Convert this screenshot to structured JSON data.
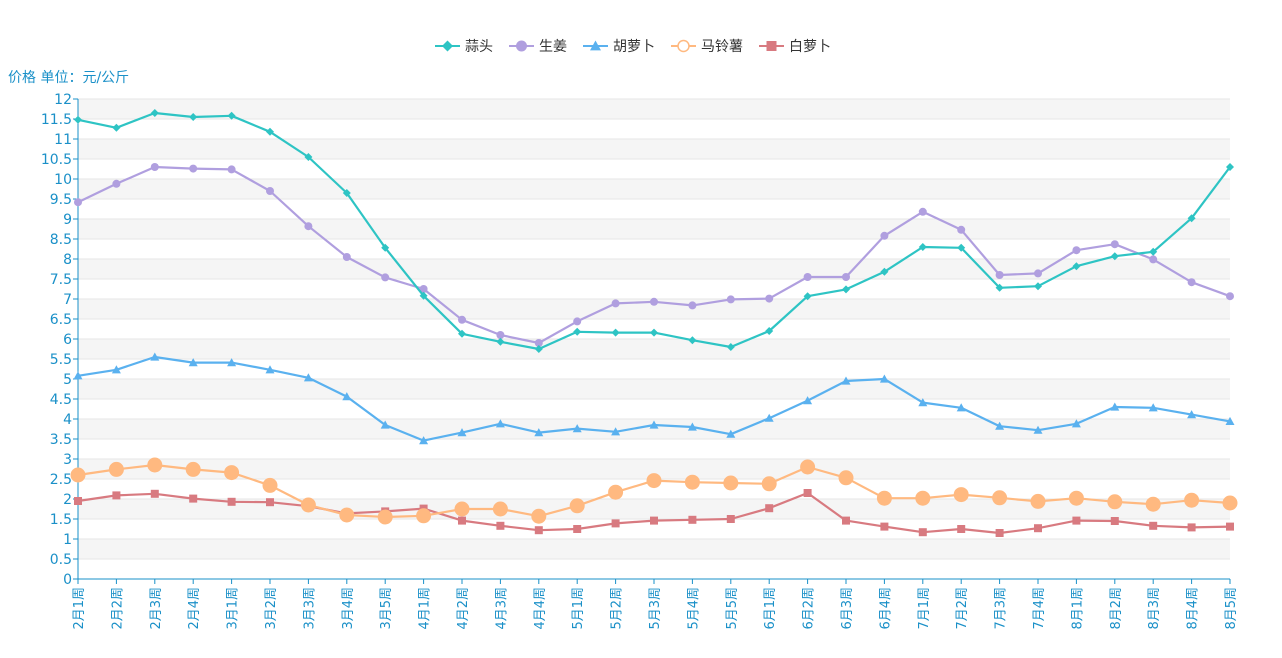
{
  "chart_data": {
    "type": "line",
    "y_unit_label": "价格 单位：元/公斤",
    "ylim": [
      0,
      12
    ],
    "y_ticks": [
      "0",
      "0.5",
      "1",
      "1.5",
      "2",
      "2.5",
      "3",
      "3.5",
      "4",
      "4.5",
      "5",
      "5.5",
      "6",
      "6.5",
      "7",
      "7.5",
      "8",
      "8.5",
      "9",
      "9.5",
      "10",
      "10.5",
      "11",
      "11.5",
      "12"
    ],
    "grid": "horizontal bands",
    "legend_position": "top-center",
    "categories": [
      "2月1周",
      "2月2周",
      "2月3周",
      "2月4周",
      "3月1周",
      "3月2周",
      "3月3周",
      "3月4周",
      "3月5周",
      "4月1周",
      "4月2周",
      "4月3周",
      "4月4周",
      "5月1周",
      "5月2周",
      "5月3周",
      "5月4周",
      "5月5周",
      "6月1周",
      "6月2周",
      "6月3周",
      "6月4周",
      "7月1周",
      "7月2周",
      "7月3周",
      "7月4周",
      "8月1周",
      "8月2周",
      "8月3周",
      "8月4周",
      "8月5周"
    ],
    "series": [
      {
        "name": "蒜头",
        "color": "#2ec4c4",
        "marker": "diamond",
        "values": [
          11.48,
          11.28,
          11.65,
          11.55,
          11.58,
          11.18,
          10.55,
          9.65,
          8.28,
          7.08,
          6.13,
          5.93,
          5.75,
          6.18,
          6.16,
          6.16,
          5.97,
          5.8,
          6.2,
          7.07,
          7.24,
          7.68,
          8.3,
          8.28,
          7.28,
          7.32,
          7.82,
          8.07,
          8.18,
          9.02,
          10.3
        ]
      },
      {
        "name": "生姜",
        "color": "#b09fdf",
        "marker": "circle",
        "values": [
          9.42,
          9.88,
          10.3,
          10.26,
          10.24,
          9.7,
          8.82,
          8.05,
          7.54,
          7.25,
          6.48,
          6.1,
          5.9,
          6.44,
          6.89,
          6.93,
          6.84,
          6.99,
          7.01,
          7.55,
          7.55,
          8.58,
          9.18,
          8.73,
          7.6,
          7.64,
          8.22,
          8.37,
          7.99,
          7.42,
          7.07
        ]
      },
      {
        "name": "胡萝卜",
        "color": "#5ab1ef",
        "marker": "triangle",
        "values": [
          5.08,
          5.23,
          5.55,
          5.41,
          5.41,
          5.23,
          5.03,
          4.56,
          3.85,
          3.46,
          3.66,
          3.88,
          3.66,
          3.76,
          3.68,
          3.85,
          3.8,
          3.62,
          4.02,
          4.46,
          4.95,
          5.0,
          4.41,
          4.28,
          3.82,
          3.72,
          3.88,
          4.3,
          4.28,
          4.11,
          3.94
        ]
      },
      {
        "name": "马铃薯",
        "color": "#ffb980",
        "marker": "empty-circle",
        "values": [
          2.6,
          2.74,
          2.85,
          2.74,
          2.66,
          2.34,
          1.85,
          1.6,
          1.55,
          1.58,
          1.75,
          1.75,
          1.57,
          1.83,
          2.17,
          2.46,
          2.42,
          2.4,
          2.38,
          2.8,
          2.53,
          2.02,
          2.02,
          2.11,
          2.03,
          1.94,
          2.02,
          1.93,
          1.87,
          1.97,
          1.9
        ]
      },
      {
        "name": "白萝卜",
        "color": "#d87a80",
        "marker": "square",
        "values": [
          1.95,
          2.09,
          2.13,
          2.01,
          1.93,
          1.92,
          1.82,
          1.64,
          1.69,
          1.76,
          1.46,
          1.33,
          1.22,
          1.25,
          1.39,
          1.46,
          1.48,
          1.5,
          1.77,
          2.15,
          1.46,
          1.31,
          1.17,
          1.25,
          1.15,
          1.27,
          1.46,
          1.45,
          1.33,
          1.29,
          1.31
        ]
      }
    ]
  }
}
